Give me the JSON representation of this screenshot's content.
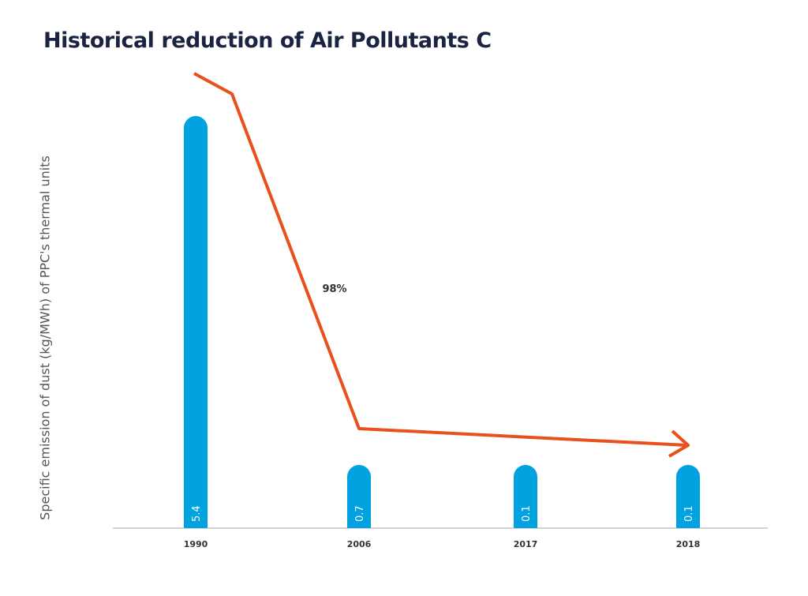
{
  "chart_data": {
    "type": "bar",
    "title": "Historical reduction of Air Pollutants C",
    "ylabel": "Specific emission of dust (kg/MWh) of PPC's thermal units",
    "xlabel": "",
    "categories": [
      "1990",
      "2006",
      "2017",
      "2018"
    ],
    "values": [
      5.4,
      0.7,
      0.1,
      0.1
    ],
    "value_labels": [
      "5.4",
      "0.7",
      "0.1",
      "0.1"
    ],
    "annotation": "98%",
    "ylim": [
      0,
      5.4
    ],
    "grid": false,
    "colors": {
      "bar": "#00a3e0",
      "trend_arrow": "#e8501c",
      "axis": "#aaaaaa",
      "title": "#1a2340"
    }
  }
}
